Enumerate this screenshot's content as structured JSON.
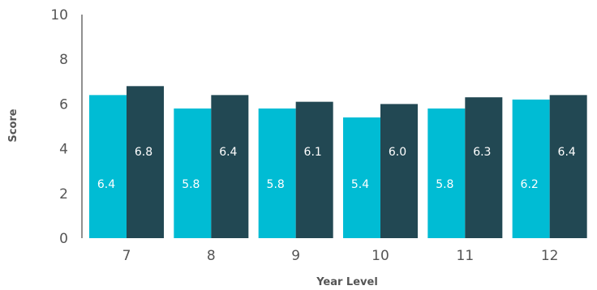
{
  "chart_data": {
    "type": "bar",
    "categories": [
      "7",
      "8",
      "9",
      "10",
      "11",
      "12"
    ],
    "series": [
      {
        "values": [
          6.4,
          5.8,
          5.8,
          5.4,
          5.8,
          6.2
        ],
        "color": "#00bcd4"
      },
      {
        "values": [
          6.8,
          6.4,
          6.1,
          6.0,
          6.3,
          6.4
        ],
        "color": "#224853"
      }
    ],
    "data_labels": [
      [
        "6.4",
        "5.8",
        "5.8",
        "5.4",
        "5.8",
        "6.2"
      ],
      [
        "6.8",
        "6.4",
        "6.1",
        "6.0",
        "6.3",
        "6.4"
      ]
    ],
    "title": "",
    "xlabel": "Year Level",
    "ylabel": "Score",
    "ylim": [
      0,
      10
    ],
    "yticks": [
      "0",
      "2",
      "4",
      "6",
      "8",
      "10"
    ],
    "grid": false,
    "legend": "none"
  }
}
